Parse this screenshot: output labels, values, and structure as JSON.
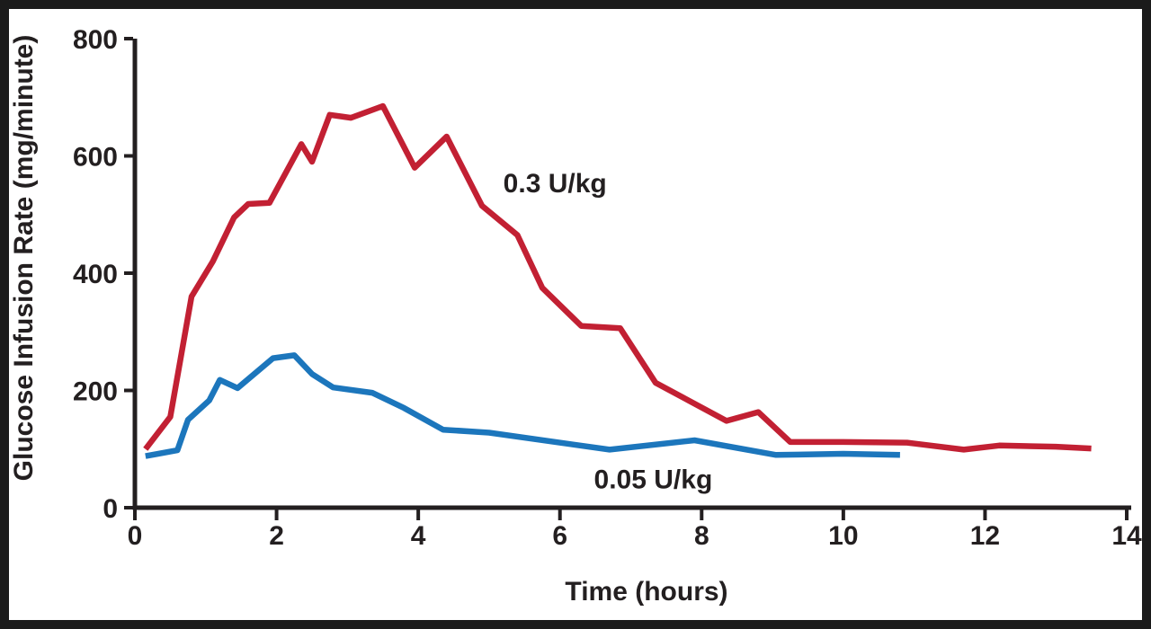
{
  "figure": {
    "background": "#ffffff",
    "border_color": "#1b1b1b",
    "axis_color": "#231f20",
    "text_color": "#231f20"
  },
  "chart_data": {
    "type": "line",
    "title": "",
    "xlabel": "Time (hours)",
    "ylabel": "Glucose Infusion Rate (mg/minute)",
    "xlim": [
      0,
      14
    ],
    "ylim": [
      0,
      800
    ],
    "x_ticks": [
      0,
      2,
      4,
      6,
      8,
      10,
      12,
      14
    ],
    "y_ticks": [
      0,
      200,
      400,
      600,
      800
    ],
    "grid": false,
    "legend_position": "inline-annotations",
    "series": [
      {
        "name": "0.3 U/kg",
        "color": "#c22033",
        "x": [
          0.15,
          0.5,
          0.8,
          1.1,
          1.4,
          1.6,
          1.9,
          2.35,
          2.5,
          2.75,
          3.05,
          3.5,
          3.95,
          4.4,
          4.9,
          5.4,
          5.75,
          6.3,
          6.85,
          7.35,
          8.35,
          8.8,
          9.25,
          10.0,
          10.9,
          11.7,
          12.2,
          13.0,
          13.5
        ],
        "y": [
          100,
          155,
          360,
          420,
          495,
          518,
          520,
          620,
          590,
          670,
          665,
          685,
          580,
          633,
          515,
          465,
          375,
          310,
          306,
          213,
          148,
          163,
          112,
          112,
          111,
          99,
          106,
          104,
          101
        ]
      },
      {
        "name": "0.05 U/kg",
        "color": "#1c76bc",
        "x": [
          0.15,
          0.6,
          0.75,
          1.05,
          1.2,
          1.45,
          1.95,
          2.25,
          2.5,
          2.8,
          3.35,
          3.8,
          4.35,
          5.0,
          6.7,
          7.9,
          9.05,
          10.0,
          10.8
        ],
        "y": [
          88,
          98,
          150,
          183,
          218,
          204,
          255,
          260,
          228,
          205,
          196,
          170,
          133,
          128,
          99,
          115,
          90,
          92,
          90
        ]
      }
    ],
    "annotations": [
      {
        "text": "0.3 U/kg",
        "x": 5.2,
        "y": 538,
        "color": "#c22033"
      },
      {
        "text": "0.05 U/kg",
        "x": 6.48,
        "y": 33,
        "color": "#1c76bc"
      }
    ]
  }
}
